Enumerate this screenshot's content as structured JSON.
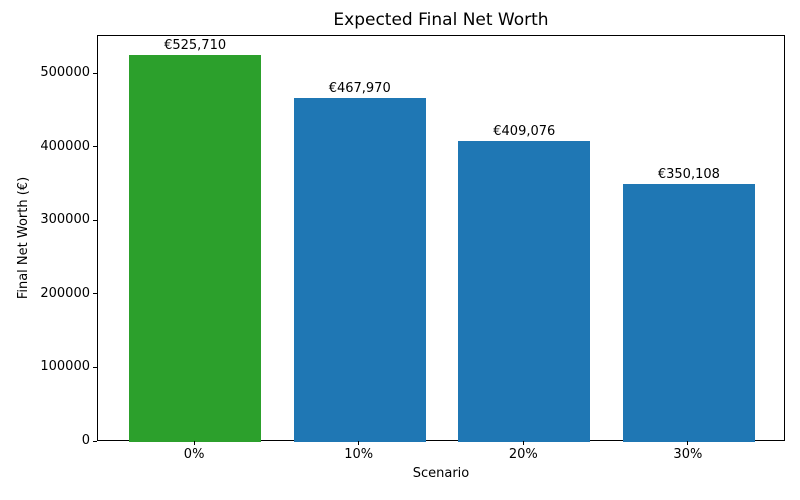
{
  "chart_data": {
    "type": "bar",
    "title": "Expected Final Net Worth",
    "xlabel": "Scenario",
    "ylabel": "Final Net Worth (€)",
    "categories": [
      "0%",
      "10%",
      "20%",
      "30%"
    ],
    "values": [
      525710,
      467970,
      409076,
      350108
    ],
    "value_labels": [
      "€525,710",
      "€467,970",
      "€409,076",
      "€350,108"
    ],
    "bar_colors": [
      "#2ca02c",
      "#1f77b4",
      "#1f77b4",
      "#1f77b4"
    ],
    "highlight_color": "#2ca02c",
    "default_bar_color": "#1f77b4",
    "yticks": [
      0,
      100000,
      200000,
      300000,
      400000,
      500000
    ],
    "ytick_labels": [
      "0",
      "100000",
      "200000",
      "300000",
      "400000",
      "500000"
    ],
    "ylim": [
      0,
      552000
    ],
    "xlim": [
      -0.59,
      3.59
    ],
    "bar_width": 0.8,
    "grid": false,
    "legend": false,
    "background": "#ffffff",
    "axis_color": "#000000",
    "text_color": "#000000"
  }
}
